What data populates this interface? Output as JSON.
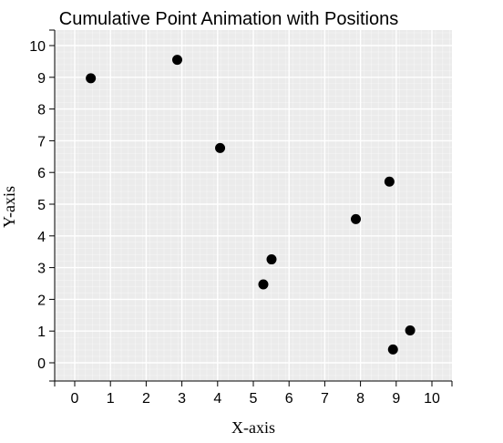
{
  "chart_data": {
    "type": "scatter",
    "title": "Cumulative Point Animation with Positions",
    "xlabel": "X-axis",
    "ylabel": "Y-axis",
    "xlim": [
      -0.5,
      10.5
    ],
    "ylim": [
      -0.6,
      10.5
    ],
    "xticks": [
      0,
      1,
      2,
      3,
      4,
      5,
      6,
      7,
      8,
      9,
      10
    ],
    "yticks": [
      0,
      1,
      2,
      3,
      4,
      5,
      6,
      7,
      8,
      9,
      10
    ],
    "grid": true,
    "points": [
      {
        "x": 0.45,
        "y": 8.97
      },
      {
        "x": 2.87,
        "y": 9.55
      },
      {
        "x": 4.07,
        "y": 6.77
      },
      {
        "x": 8.81,
        "y": 5.71
      },
      {
        "x": 7.87,
        "y": 4.53
      },
      {
        "x": 5.51,
        "y": 3.26
      },
      {
        "x": 5.28,
        "y": 2.47
      },
      {
        "x": 9.39,
        "y": 1.02
      },
      {
        "x": 8.91,
        "y": 0.42
      }
    ],
    "colors": {
      "background": "#ebebeb",
      "grid": "#ffffff",
      "point": "#000000"
    }
  }
}
